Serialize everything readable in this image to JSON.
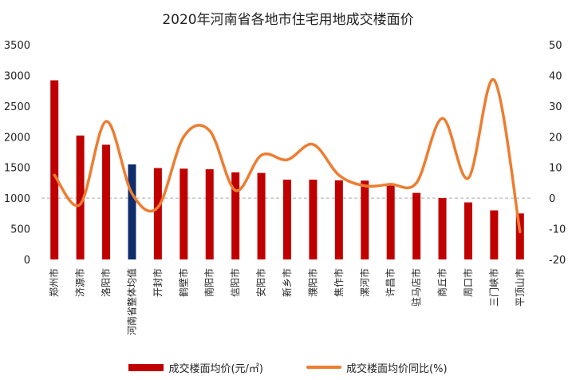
{
  "chart_data": {
    "type": "bar+line",
    "title": "2020年河南省各地市住宅用地成交楼面价",
    "categories": [
      "郑州市",
      "济源市",
      "洛阳市",
      "河南省整体均值",
      "开封市",
      "鹤壁市",
      "南阳市",
      "信阳市",
      "安阳市",
      "新乡市",
      "濮阳市",
      "焦作市",
      "漯河市",
      "许昌市",
      "驻马店市",
      "商丘市",
      "周口市",
      "三门峡市",
      "平顶山市"
    ],
    "series": [
      {
        "name": "成交楼面均价(元/㎡)",
        "axis": "left",
        "chart": "bar",
        "values": [
          2920,
          2020,
          1870,
          1550,
          1490,
          1480,
          1470,
          1420,
          1410,
          1300,
          1300,
          1290,
          1285,
          1230,
          1085,
          1000,
          930,
          800,
          750
        ]
      },
      {
        "name": "成交楼面均价同比(%)",
        "axis": "right",
        "chart": "line",
        "smooth": true,
        "values": [
          7.5,
          -2,
          25,
          1.5,
          -3,
          20,
          22,
          2.5,
          14,
          12.5,
          17.5,
          7.5,
          4,
          4.5,
          5,
          26,
          6.5,
          38.5,
          -11
        ]
      }
    ],
    "y_left": {
      "ticks": [
        "0",
        "500",
        "1000",
        "1500",
        "2000",
        "2500",
        "3000",
        "3500"
      ],
      "range": [
        0,
        3500
      ]
    },
    "y_right": {
      "ticks": [
        "-20",
        "-10",
        "0",
        "10",
        "20",
        "30",
        "40",
        "50"
      ],
      "range": [
        -20,
        50
      ]
    },
    "zero_reference_line": true,
    "grid": false,
    "legend_position": "bottom",
    "colors": {
      "bar": "#C00000",
      "bar_highlight": "#0F2C6B",
      "line": "#ED7D31",
      "zero_line": "#AAAAAA"
    },
    "highlight_category": "河南省整体均值"
  }
}
